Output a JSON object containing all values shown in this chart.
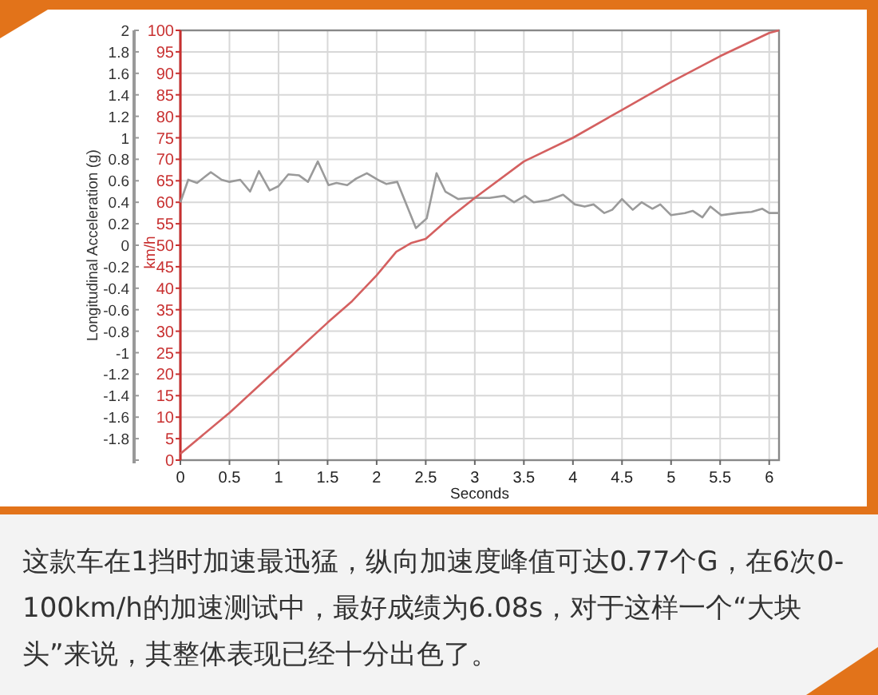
{
  "chart_data": {
    "type": "line",
    "xlabel": "Seconds",
    "ylabel": "Longitudinal Acceleration (g)",
    "y2label": "km/h",
    "xlim": [
      0,
      6.1
    ],
    "xticks": [
      0,
      0.5,
      1,
      1.5,
      2,
      2.5,
      3,
      3.5,
      4,
      4.5,
      5,
      5.5,
      6
    ],
    "ylim": [
      -2,
      2
    ],
    "yticks": [
      {
        "value": -2,
        "label": null
      },
      -1.8,
      -1.6,
      -1.4,
      -1.2,
      -1,
      -0.8,
      -0.6,
      -0.4,
      -0.2,
      0,
      0.2,
      0.4,
      0.6,
      0.8,
      1,
      1.2,
      1.4,
      1.6,
      1.8,
      2
    ],
    "y2lim": [
      0,
      100
    ],
    "y2ticks": [
      0,
      5,
      10,
      15,
      20,
      25,
      30,
      35,
      40,
      45,
      50,
      55,
      60,
      65,
      70,
      75,
      80,
      85,
      90,
      95,
      100
    ],
    "grid": true,
    "series": [
      {
        "axis": "y",
        "color": "#9a9a9a",
        "x": [
          0,
          0.08,
          0.17,
          0.31,
          0.42,
          0.5,
          0.61,
          0.71,
          0.8,
          0.91,
          1.0,
          1.1,
          1.21,
          1.3,
          1.4,
          1.51,
          1.59,
          1.7,
          1.79,
          1.9,
          2.01,
          2.1,
          2.21,
          2.4,
          2.51,
          2.61,
          2.7,
          2.83,
          2.95,
          3.15,
          3.3,
          3.4,
          3.51,
          3.6,
          3.75,
          3.9,
          4.02,
          4.12,
          4.21,
          4.32,
          4.4,
          4.5,
          4.61,
          4.7,
          4.81,
          4.89,
          5.0,
          5.14,
          5.22,
          5.32,
          5.4,
          5.51,
          5.68,
          5.82,
          5.93,
          6.0,
          6.1
        ],
        "values": [
          0.4,
          0.61,
          0.58,
          0.68,
          0.61,
          0.59,
          0.61,
          0.5,
          0.69,
          0.51,
          0.55,
          0.66,
          0.65,
          0.59,
          0.78,
          0.56,
          0.58,
          0.56,
          0.62,
          0.67,
          0.61,
          0.57,
          0.59,
          0.16,
          0.25,
          0.67,
          0.5,
          0.43,
          0.44,
          0.44,
          0.46,
          0.4,
          0.46,
          0.4,
          0.42,
          0.47,
          0.38,
          0.36,
          0.38,
          0.3,
          0.33,
          0.43,
          0.33,
          0.4,
          0.34,
          0.38,
          0.28,
          0.3,
          0.32,
          0.26,
          0.36,
          0.28,
          0.3,
          0.31,
          0.34,
          0.3,
          0.3
        ]
      },
      {
        "axis": "y2",
        "color": "#d46060",
        "x": [
          0,
          0.5,
          1,
          1.5,
          1.75,
          2,
          2.2,
          2.35,
          2.5,
          2.75,
          3,
          3.5,
          4,
          4.5,
          5,
          5.5,
          6,
          6.1
        ],
        "values": [
          1.5,
          11,
          21.5,
          32,
          37,
          43,
          48.5,
          50.5,
          51.5,
          56.5,
          61,
          69.5,
          75,
          81.5,
          88,
          94,
          99.4,
          100
        ]
      }
    ],
    "annotations": [
      "这款车在1挡时加速最迅猛，纵向加速度峰值可达0.77个G，在6次0-100km/h的加速测试中，最好成绩为6.08s，对于这样一个“大块头”来说，其整体表现已经十分出色了。"
    ]
  }
}
